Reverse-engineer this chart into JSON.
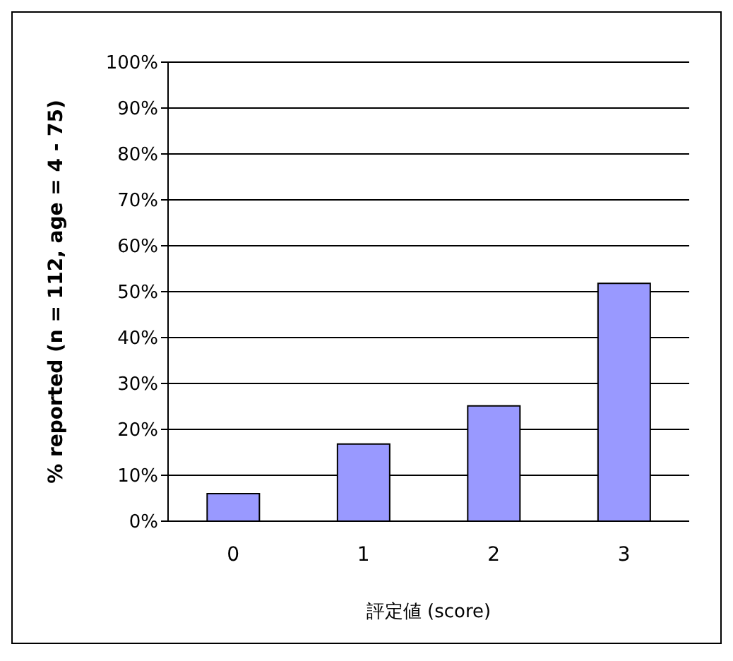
{
  "chart_data": {
    "type": "bar",
    "xlabel": "評定値 (score)",
    "ylabel": "% reported (n = 112, age = 4 - 75)",
    "categories": [
      "0",
      "1",
      "2",
      "3"
    ],
    "values": [
      6,
      16.8,
      25.1,
      51.8
    ],
    "color": "#9999ff",
    "ylim": [
      0,
      100
    ],
    "yticks": [
      {
        "value": 0,
        "label": "0%"
      },
      {
        "value": 10,
        "label": "10%"
      },
      {
        "value": 20,
        "label": "20%"
      },
      {
        "value": 30,
        "label": "30%"
      },
      {
        "value": 40,
        "label": "40%"
      },
      {
        "value": 50,
        "label": "50%"
      },
      {
        "value": 60,
        "label": "60%"
      },
      {
        "value": 70,
        "label": "70%"
      },
      {
        "value": 80,
        "label": "80%"
      },
      {
        "value": 90,
        "label": "90%"
      },
      {
        "value": 100,
        "label": "100%"
      }
    ],
    "grid": "y"
  }
}
